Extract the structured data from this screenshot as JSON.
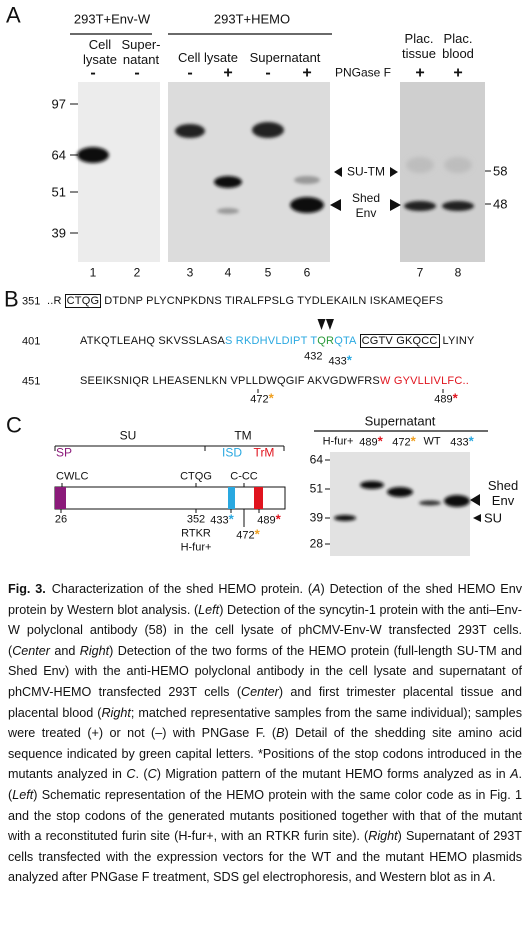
{
  "panel_a": {
    "label": "A",
    "groups": [
      "293T+Env-W",
      "293T+HEMO"
    ],
    "columns": [
      "Cell lysate",
      "Super-natant",
      "Cell lysate",
      "Supernatant",
      "Plac. tissue",
      "Plac. blood"
    ],
    "treatment_label": "PNGase F",
    "treatments": [
      "-",
      "-",
      "-",
      "+",
      "-",
      "+",
      "+",
      "+"
    ],
    "mw_left": [
      "97",
      "64",
      "51",
      "39"
    ],
    "mw_right": [
      "58",
      "48"
    ],
    "band_labels": [
      "SU-TM",
      "Shed Env"
    ],
    "lanes": [
      "1",
      "2",
      "3",
      "4",
      "5",
      "6",
      "7",
      "8"
    ]
  },
  "panel_b": {
    "label": "B",
    "lines": [
      {
        "start": "351",
        "segments": [
          {
            "text": "..R"
          },
          {
            "text": "CTQG",
            "box": true
          },
          {
            "text": "DTDNP PLYCNPKDNS TIRALFPSLG TYDLEKAILN ISKAMEQEFS"
          }
        ]
      },
      {
        "start": "401",
        "segments": [
          {
            "text": "ATKQTLEAHQ SKVSSLASA"
          },
          {
            "text": "S RKDHVLDIPT T",
            "color": "#29a8e0"
          },
          {
            "text": "QR",
            "color": "#2a9a3a"
          },
          {
            "text": "QTA",
            "color": "#29a8e0"
          },
          {
            "text": "CGTV GKQCC",
            "box": true
          },
          {
            "text": "LYINY"
          }
        ]
      },
      {
        "start": "451",
        "segments": [
          {
            "text": "SEEIKSNIQR LHEASENLKN VPLLDWQGIF AKVGDWFRS"
          },
          {
            "text": "W GYVLLIVLFC..",
            "color": "#e0141e"
          }
        ]
      }
    ],
    "sites": [
      {
        "label": "432"
      },
      {
        "label": "433",
        "star": "*",
        "color": "#29a8e0"
      },
      {
        "label": "472",
        "star": "*",
        "color": "#f0a020"
      },
      {
        "label": "489",
        "star": "*",
        "color": "#e0141e"
      }
    ]
  },
  "panel_c": {
    "label": "C",
    "regions": [
      "SU",
      "TM"
    ],
    "domains": [
      {
        "label": "SP",
        "color": "#8b1a7a"
      },
      {
        "label": "ISD",
        "color": "#29a8e0"
      },
      {
        "label": "TrM",
        "color": "#e0141e"
      }
    ],
    "motifs": [
      "CWLC",
      "CTQG",
      "C-CC"
    ],
    "positions": [
      {
        "label": "26"
      },
      {
        "label": "352"
      },
      {
        "label": "433",
        "star": "*",
        "color": "#29a8e0"
      },
      {
        "label": "489",
        "star": "*",
        "color": "#e0141e"
      },
      {
        "label": "472",
        "star": "*",
        "color": "#f0a020"
      }
    ],
    "furin": [
      "RTKR",
      "H-fur+"
    ],
    "blot_title": "Supernatant",
    "blot_lanes": [
      {
        "label": "H-fur+"
      },
      {
        "label": "489",
        "star": "*",
        "color": "#e0141e"
      },
      {
        "label": "472",
        "star": "*",
        "color": "#f0a020"
      },
      {
        "label": "WT"
      },
      {
        "label": "433",
        "star": "*",
        "color": "#29a8e0"
      }
    ],
    "mw": [
      "64",
      "51",
      "39",
      "28"
    ],
    "band_labels": [
      "Shed Env",
      "SU"
    ]
  },
  "caption": {
    "label": "Fig. 3.",
    "segments": [
      {
        "text": "Characterization of the shed HEMO protein. ("
      },
      {
        "text": "A",
        "italic": true
      },
      {
        "text": ") Detection of the shed HEMO Env protein by Western blot analysis. ("
      },
      {
        "text": "Left",
        "italic": true
      },
      {
        "text": ") Detection of the syncytin-1 protein with the anti–Env-W polyclonal antibody (58) in the cell lysate of phCMV-Env-W transfected 293T cells. ("
      },
      {
        "text": "Center",
        "italic": true
      },
      {
        "text": " and "
      },
      {
        "text": "Right",
        "italic": true
      },
      {
        "text": ") Detection of the two forms of the HEMO protein (full-length SU-TM and Shed Env) with the anti-HEMO polyclonal antibody in the cell lysate and supernatant of phCMV-HEMO transfected 293T cells ("
      },
      {
        "text": "Center",
        "italic": true
      },
      {
        "text": ") and first trimester placental tissue and placental blood ("
      },
      {
        "text": "Right",
        "italic": true
      },
      {
        "text": "; matched representative samples from the same individual); samples were treated (+) or not (–) with PNGase F. ("
      },
      {
        "text": "B",
        "italic": true
      },
      {
        "text": ") Detail of the shedding site amino acid sequence indicated by green capital letters. *Positions of the stop codons introduced in the mutants analyzed in "
      },
      {
        "text": "C",
        "italic": true
      },
      {
        "text": ". ("
      },
      {
        "text": "C",
        "italic": true
      },
      {
        "text": ") Migration pattern of the mutant HEMO forms analyzed as in "
      },
      {
        "text": "A",
        "italic": true
      },
      {
        "text": ". ("
      },
      {
        "text": "Left",
        "italic": true
      },
      {
        "text": ") Schematic representation of the HEMO protein with the same color code as in Fig. 1 and the stop codons of the generated mutants positioned together with that of the mutant with a reconstituted furin site (H-fur+, with an RTKR furin site). ("
      },
      {
        "text": "Right",
        "italic": true
      },
      {
        "text": ") Supernatant of 293T cells transfected with the expression vectors for the WT and the mutant HEMO plasmids analyzed after PNGase F treatment, SDS gel electrophoresis, and Western blot as in "
      },
      {
        "text": "A",
        "italic": true
      },
      {
        "text": "."
      }
    ]
  }
}
